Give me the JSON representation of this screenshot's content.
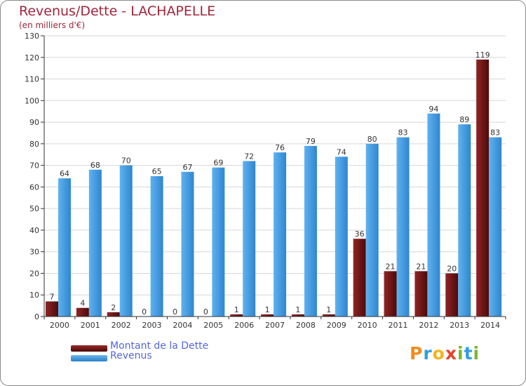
{
  "colors": {
    "dette": "#7a1a1a",
    "revenus": "#4a9fe0",
    "grid": "#d6d6d6",
    "axis": "#333333",
    "label": "#333333"
  },
  "chart_data": {
    "type": "bar",
    "title": "Revenus/Dette - LACHAPELLE",
    "subtitle": "(en milliers d'€)",
    "categories": [
      "2000",
      "2001",
      "2002",
      "2003",
      "2004",
      "2005",
      "2006",
      "2007",
      "2008",
      "2009",
      "2010",
      "2011",
      "2012",
      "2013",
      "2014"
    ],
    "series": [
      {
        "name": "Montant de la Dette",
        "values": [
          7,
          4,
          2,
          0,
          0,
          0,
          1,
          1,
          1,
          1,
          36,
          21,
          21,
          20,
          119
        ]
      },
      {
        "name": "Revenus",
        "values": [
          64,
          68,
          70,
          65,
          67,
          69,
          72,
          76,
          79,
          74,
          80,
          83,
          94,
          89,
          83
        ]
      }
    ],
    "ylim": [
      0,
      130
    ],
    "yticks": [
      0,
      10,
      20,
      30,
      40,
      50,
      60,
      70,
      80,
      90,
      100,
      110,
      120,
      130
    ],
    "grid": true,
    "legend_position": "bottom-left"
  },
  "logo": {
    "letters": [
      "P",
      "r",
      "o",
      "x",
      "i",
      "t",
      "i"
    ],
    "colors": [
      "#f28c1c",
      "#2f9fe3",
      "#f2b51c",
      "#e8402a",
      "#79b82b",
      "#2f9fe3",
      "#79b82b"
    ]
  }
}
